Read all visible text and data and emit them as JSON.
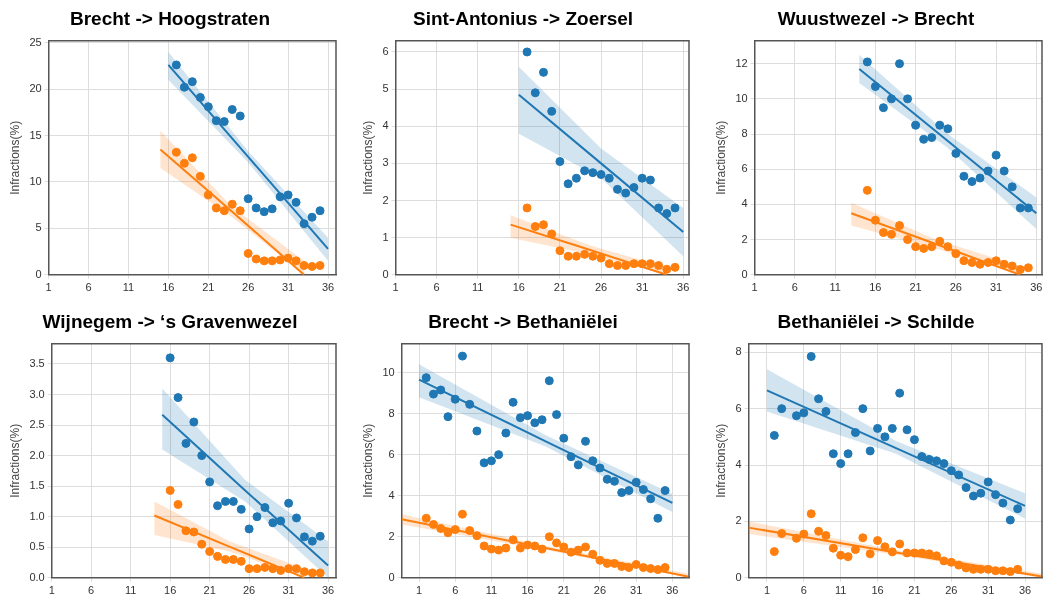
{
  "chart_data": [
    {
      "type": "scatter",
      "title": "Brecht -> Hoogstraten",
      "ylabel": "Infractions(%)",
      "xlim": [
        1,
        37
      ],
      "xticks": [
        1,
        6,
        11,
        16,
        21,
        26,
        31,
        36
      ],
      "ylim": [
        0,
        25.2
      ],
      "yticks": [
        0,
        5,
        10,
        15,
        20,
        25
      ],
      "grid": true,
      "marker": "circle",
      "legend": false,
      "series": [
        {
          "color": "#1f77b4",
          "x": [
            17,
            18,
            19,
            20,
            21,
            22,
            23,
            24,
            25,
            26,
            27,
            28,
            29,
            30,
            31,
            32,
            33,
            34,
            35
          ],
          "values": [
            22.6,
            20.2,
            20.8,
            19.1,
            18.1,
            16.6,
            16.5,
            17.8,
            17.1,
            8.2,
            7.2,
            6.8,
            7.1,
            8.4,
            8.6,
            7.8,
            5.5,
            6.2,
            6.9
          ]
        },
        {
          "color": "#ff7f0e",
          "x": [
            17,
            18,
            19,
            20,
            21,
            22,
            23,
            24,
            25,
            26,
            27,
            28,
            29,
            30,
            31,
            32,
            33,
            34,
            35
          ],
          "values": [
            13.2,
            12.0,
            12.6,
            10.6,
            8.6,
            7.2,
            6.9,
            7.6,
            6.9,
            2.3,
            1.7,
            1.5,
            1.5,
            1.6,
            1.8,
            1.5,
            1.0,
            0.9,
            1.0
          ]
        },
        {
          "type": "line",
          "color": "#1f77b4",
          "marker": "none",
          "x": [
            16,
            26,
            36
          ],
          "values": [
            22.6,
            12.7,
            2.8
          ],
          "lower": [
            21,
            12.1,
            1.5
          ],
          "upper": [
            24,
            13.3,
            4
          ]
        },
        {
          "type": "line",
          "color": "#ff7f0e",
          "marker": "none",
          "x": [
            15,
            24,
            33
          ],
          "values": [
            13.5,
            6.8,
            0
          ],
          "lower": [
            11.5,
            6.2,
            0
          ],
          "upper": [
            15.5,
            7.3,
            1.5
          ]
        }
      ]
    },
    {
      "type": "scatter",
      "title": "Sint-Antonius -> Zoersel",
      "ylabel": "Infractions(%)",
      "xlim": [
        1,
        36.7
      ],
      "xticks": [
        1,
        6,
        11,
        16,
        21,
        26,
        31,
        36
      ],
      "ylim": [
        0,
        6.3
      ],
      "yticks": [
        0,
        1,
        2,
        3,
        4,
        5,
        6
      ],
      "grid": true,
      "marker": "circle",
      "legend": false,
      "series": [
        {
          "color": "#1f77b4",
          "x": [
            17,
            18,
            19,
            20,
            21,
            22,
            23,
            24,
            25,
            26,
            27,
            28,
            29,
            30,
            31,
            32,
            33,
            34,
            35
          ],
          "values": [
            6.0,
            4.9,
            5.45,
            4.4,
            3.05,
            2.45,
            2.6,
            2.8,
            2.75,
            2.7,
            2.6,
            2.3,
            2.2,
            2.35,
            2.6,
            2.55,
            1.8,
            1.65,
            1.8
          ]
        },
        {
          "color": "#ff7f0e",
          "x": [
            17,
            18,
            19,
            20,
            21,
            22,
            23,
            24,
            25,
            26,
            27,
            28,
            29,
            30,
            31,
            32,
            33,
            34,
            35
          ],
          "values": [
            1.8,
            1.3,
            1.35,
            1.1,
            0.65,
            0.5,
            0.5,
            0.55,
            0.5,
            0.45,
            0.3,
            0.25,
            0.25,
            0.3,
            0.3,
            0.3,
            0.25,
            0.15,
            0.2
          ]
        },
        {
          "type": "line",
          "color": "#1f77b4",
          "marker": "none",
          "x": [
            16,
            26,
            36
          ],
          "values": [
            4.85,
            3.0,
            1.15
          ],
          "lower": [
            3.8,
            2.6,
            0.5
          ],
          "upper": [
            5.6,
            3.4,
            1.8
          ]
        },
        {
          "type": "line",
          "color": "#ff7f0e",
          "marker": "none",
          "x": [
            15,
            24.5,
            34
          ],
          "values": [
            1.35,
            0.68,
            0
          ],
          "lower": [
            1.0,
            0.55,
            0
          ],
          "upper": [
            1.6,
            0.8,
            0.2
          ]
        }
      ]
    },
    {
      "type": "scatter",
      "title": "Wuustwezel -> Brecht",
      "ylabel": "Infractions(%)",
      "xlim": [
        1,
        36.7
      ],
      "xticks": [
        1,
        6,
        11,
        16,
        21,
        26,
        31,
        36
      ],
      "ylim": [
        0,
        13.3
      ],
      "yticks": [
        0,
        2,
        4,
        6,
        8,
        10,
        12
      ],
      "grid": true,
      "marker": "circle",
      "legend": false,
      "series": [
        {
          "color": "#1f77b4",
          "x": [
            15,
            16,
            17,
            18,
            19,
            20,
            21,
            22,
            23,
            24,
            25,
            26,
            27,
            28,
            29,
            30,
            31,
            32,
            33,
            34,
            35
          ],
          "values": [
            12.1,
            10.7,
            9.5,
            10.0,
            12.0,
            10.0,
            8.5,
            7.7,
            7.8,
            8.5,
            8.3,
            6.9,
            5.6,
            5.3,
            5.5,
            5.9,
            6.8,
            5.9,
            5.0,
            3.8,
            3.8
          ]
        },
        {
          "color": "#ff7f0e",
          "x": [
            15,
            16,
            17,
            18,
            19,
            20,
            21,
            22,
            23,
            24,
            25,
            26,
            27,
            28,
            29,
            30,
            31,
            32,
            33,
            34,
            35
          ],
          "values": [
            4.8,
            3.1,
            2.4,
            2.3,
            2.8,
            2.0,
            1.6,
            1.5,
            1.6,
            1.9,
            1.6,
            1.2,
            0.8,
            0.7,
            0.6,
            0.7,
            0.8,
            0.6,
            0.5,
            0.3,
            0.4
          ]
        },
        {
          "type": "line",
          "color": "#1f77b4",
          "marker": "none",
          "x": [
            14,
            25,
            36
          ],
          "values": [
            11.7,
            7.6,
            3.5
          ],
          "lower": [
            10.9,
            7.2,
            2.6
          ],
          "upper": [
            12.5,
            8.0,
            4.4
          ]
        },
        {
          "type": "line",
          "color": "#ff7f0e",
          "marker": "none",
          "x": [
            13,
            23.5,
            34
          ],
          "values": [
            3.5,
            1.75,
            0
          ],
          "lower": [
            2.8,
            1.5,
            0
          ],
          "upper": [
            4.1,
            2.0,
            0.5
          ]
        }
      ]
    },
    {
      "type": "scatter",
      "title": "Wijnegem -> ‘s Gravenwezel",
      "ylabel": "Infractions(%)",
      "xlim": [
        1,
        37
      ],
      "xticks": [
        1,
        6,
        11,
        16,
        21,
        26,
        31,
        36
      ],
      "ylim": [
        0,
        3.83
      ],
      "yticks": [
        {
          "value": 0,
          "label": "0.0"
        },
        0.5,
        {
          "value": 1,
          "label": "1.0"
        },
        1.5,
        {
          "value": 2,
          "label": "2.0"
        },
        2.5,
        {
          "value": 3,
          "label": "3.0"
        },
        3.5
      ],
      "grid": true,
      "marker": "circle",
      "legend": false,
      "series": [
        {
          "color": "#1f77b4",
          "x": [
            16,
            17,
            18,
            19,
            20,
            21,
            22,
            23,
            24,
            25,
            26,
            27,
            28,
            29,
            30,
            31,
            32,
            33,
            34,
            35
          ],
          "values": [
            3.6,
            2.95,
            2.2,
            2.55,
            2.0,
            1.57,
            1.18,
            1.25,
            1.25,
            1.12,
            0.8,
            1.0,
            1.15,
            0.9,
            0.93,
            1.22,
            0.98,
            0.67,
            0.6,
            0.68
          ]
        },
        {
          "color": "#ff7f0e",
          "x": [
            16,
            17,
            18,
            19,
            20,
            21,
            22,
            23,
            24,
            25,
            26,
            27,
            28,
            29,
            30,
            31,
            32,
            33,
            34,
            35
          ],
          "values": [
            1.43,
            1.2,
            0.77,
            0.75,
            0.55,
            0.43,
            0.35,
            0.3,
            0.3,
            0.27,
            0.15,
            0.15,
            0.17,
            0.15,
            0.12,
            0.15,
            0.15,
            0.1,
            0.08,
            0.08
          ]
        },
        {
          "type": "line",
          "color": "#1f77b4",
          "marker": "none",
          "x": [
            15,
            25.5,
            36
          ],
          "values": [
            2.67,
            1.43,
            0.2
          ],
          "lower": [
            2.1,
            1.25,
            0
          ],
          "upper": [
            3.1,
            1.6,
            0.6
          ]
        },
        {
          "type": "line",
          "color": "#ff7f0e",
          "marker": "none",
          "x": [
            14,
            23.5,
            33
          ],
          "values": [
            1.02,
            0.51,
            0
          ],
          "lower": [
            0.7,
            0.43,
            0
          ],
          "upper": [
            1.25,
            0.6,
            0.15
          ]
        }
      ]
    },
    {
      "type": "scatter",
      "title": "Brecht -> Bethaniëlei",
      "ylabel": "Infractions(%)",
      "xlim": [
        -1.4,
        38.3
      ],
      "xticks": [
        1,
        6,
        11,
        16,
        21,
        26,
        31,
        36
      ],
      "ylim": [
        0,
        11.4
      ],
      "yticks": [
        0,
        2,
        4,
        6,
        8,
        10
      ],
      "grid": true,
      "marker": "circle",
      "legend": false,
      "series": [
        {
          "color": "#1f77b4",
          "x": [
            2,
            3,
            4,
            5,
            6,
            7,
            8,
            9,
            10,
            11,
            12,
            13,
            14,
            15,
            16,
            17,
            18,
            19,
            20,
            21,
            22,
            23,
            24,
            25,
            26,
            27,
            28,
            29,
            30,
            31,
            32,
            33,
            34,
            35
          ],
          "values": [
            9.75,
            8.95,
            9.15,
            7.85,
            8.7,
            10.8,
            8.45,
            7.15,
            5.6,
            5.7,
            6.0,
            7.05,
            8.55,
            7.8,
            7.9,
            7.55,
            7.7,
            9.6,
            7.95,
            6.8,
            5.9,
            5.5,
            6.65,
            5.7,
            5.35,
            4.8,
            4.7,
            4.15,
            4.25,
            4.65,
            4.3,
            3.85,
            2.9,
            4.25
          ]
        },
        {
          "color": "#ff7f0e",
          "x": [
            2,
            3,
            4,
            5,
            6,
            7,
            8,
            9,
            10,
            11,
            12,
            13,
            14,
            15,
            16,
            17,
            18,
            19,
            20,
            21,
            22,
            23,
            24,
            25,
            26,
            27,
            28,
            29,
            30,
            31,
            32,
            33,
            34,
            35
          ],
          "values": [
            2.9,
            2.6,
            2.4,
            2.2,
            2.35,
            3.1,
            2.3,
            2.05,
            1.55,
            1.4,
            1.35,
            1.45,
            1.85,
            1.45,
            1.6,
            1.55,
            1.4,
            2.0,
            1.7,
            1.5,
            1.25,
            1.35,
            1.5,
            1.15,
            0.85,
            0.7,
            0.7,
            0.55,
            0.5,
            0.65,
            0.5,
            0.45,
            0.4,
            0.5
          ]
        },
        {
          "type": "line",
          "color": "#1f77b4",
          "marker": "none",
          "x": [
            1,
            18.5,
            36
          ],
          "values": [
            9.65,
            6.65,
            3.65
          ],
          "lower": [
            8.8,
            6.4,
            3.2
          ],
          "upper": [
            10.4,
            6.95,
            4.1
          ]
        },
        {
          "type": "line",
          "color": "#ff7f0e",
          "marker": "none",
          "x": [
            -1.4,
            18.5,
            38.3
          ],
          "values": [
            2.85,
            1.45,
            0.05
          ],
          "lower": [
            2.6,
            1.35,
            0
          ],
          "upper": [
            3.1,
            1.55,
            0.2
          ]
        }
      ]
    },
    {
      "type": "scatter",
      "title": "Bethaniëlei -> Schilde",
      "ylabel": "Infractions(%)",
      "xlim": [
        -1.5,
        38.3
      ],
      "xticks": [
        1,
        6,
        11,
        16,
        21,
        26,
        31,
        36
      ],
      "ylim": [
        0,
        8.3
      ],
      "yticks": [
        0,
        2,
        4,
        6,
        8
      ],
      "grid": true,
      "marker": "circle",
      "legend": false,
      "series": [
        {
          "color": "#1f77b4",
          "x": [
            2,
            3,
            5,
            6,
            7,
            8,
            9,
            10,
            11,
            12,
            13,
            14,
            15,
            16,
            17,
            18,
            19,
            20,
            21,
            22,
            23,
            24,
            25,
            26,
            27,
            28,
            29,
            30,
            31,
            32,
            33,
            34,
            35
          ],
          "values": [
            5.05,
            6.0,
            5.75,
            5.85,
            7.85,
            6.35,
            5.9,
            4.4,
            4.05,
            4.4,
            5.15,
            6.0,
            4.5,
            5.3,
            5.0,
            5.3,
            6.55,
            5.25,
            4.9,
            4.3,
            4.2,
            4.15,
            4.05,
            3.8,
            3.65,
            3.2,
            2.9,
            3.0,
            3.4,
            2.95,
            2.65,
            2.05,
            2.45
          ]
        },
        {
          "color": "#ff7f0e",
          "x": [
            2,
            3,
            5,
            6,
            7,
            8,
            9,
            10,
            11,
            12,
            13,
            14,
            15,
            16,
            17,
            18,
            19,
            20,
            21,
            22,
            23,
            24,
            25,
            26,
            27,
            28,
            29,
            30,
            31,
            32,
            33,
            34,
            35
          ],
          "values": [
            0.93,
            1.57,
            1.4,
            1.55,
            2.27,
            1.65,
            1.5,
            1.05,
            0.8,
            0.75,
            1.0,
            1.42,
            0.85,
            1.32,
            1.1,
            0.92,
            1.2,
            0.88,
            0.88,
            0.88,
            0.85,
            0.78,
            0.6,
            0.55,
            0.45,
            0.35,
            0.3,
            0.3,
            0.3,
            0.25,
            0.25,
            0.22,
            0.3
          ]
        },
        {
          "type": "line",
          "color": "#1f77b4",
          "marker": "none",
          "x": [
            1,
            18.5,
            36
          ],
          "values": [
            6.65,
            4.6,
            2.55
          ],
          "lower": [
            5.9,
            4.4,
            2.1
          ],
          "upper": [
            7.4,
            4.85,
            3.0
          ]
        },
        {
          "type": "line",
          "color": "#ff7f0e",
          "marker": "none",
          "x": [
            -1.5,
            18.5,
            38.3
          ],
          "values": [
            1.78,
            0.9,
            0.05
          ],
          "lower": [
            1.55,
            0.82,
            0
          ],
          "upper": [
            2.0,
            0.98,
            0.15
          ]
        }
      ]
    }
  ]
}
